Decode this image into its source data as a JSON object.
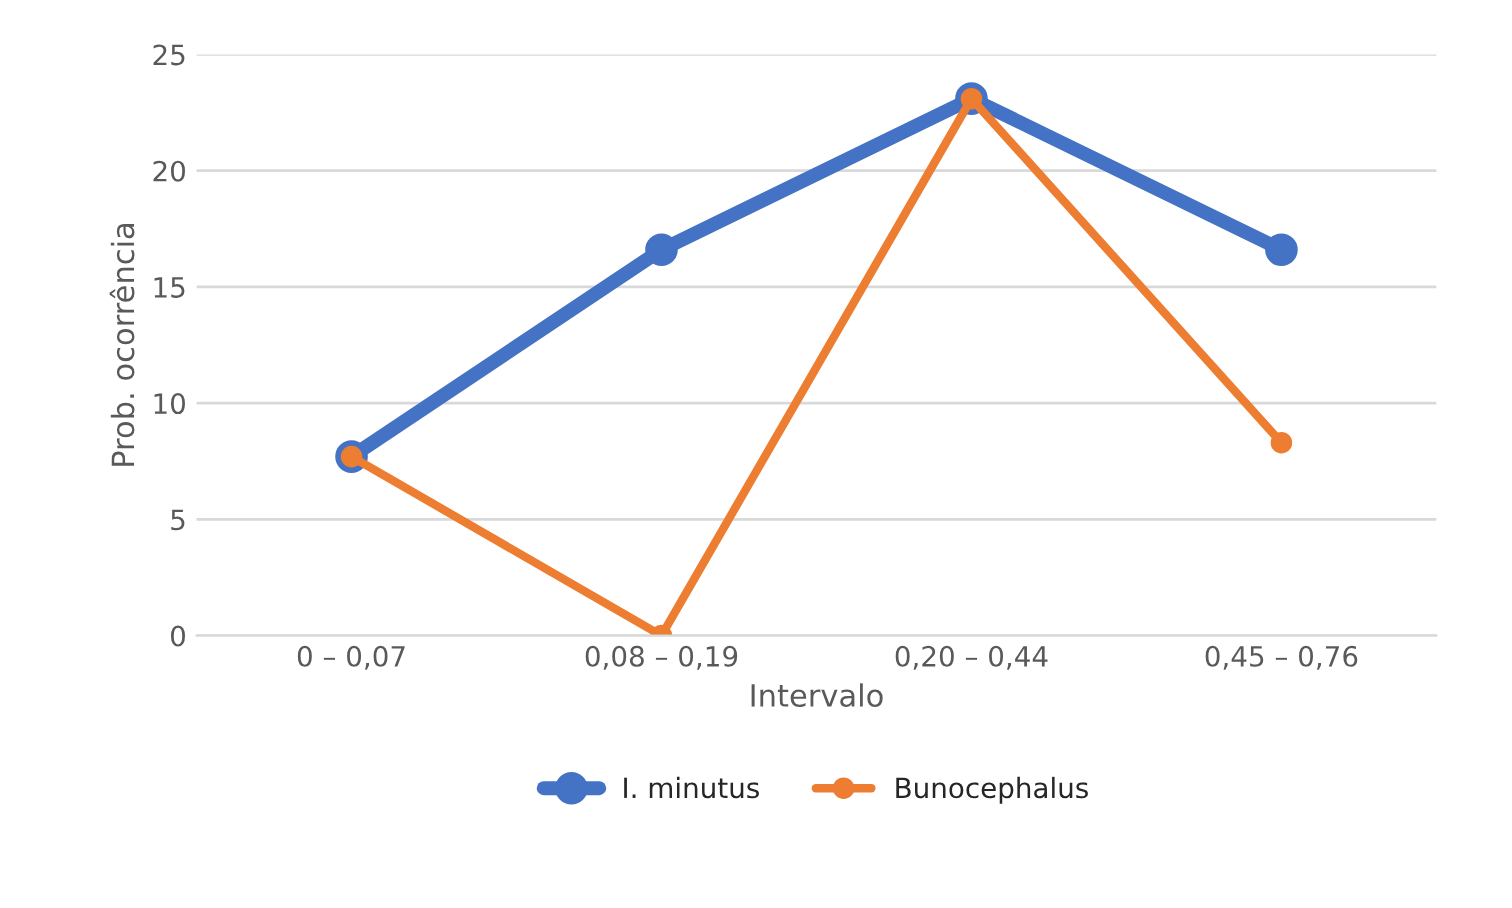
{
  "chart_data": {
    "type": "line",
    "xlabel": "Intervalo",
    "ylabel": "Prob. ocorrência",
    "categories": [
      "0 – 0,07",
      "0,08 – 0,19",
      "0,20 – 0,44",
      "0,45 – 0,76"
    ],
    "series": [
      {
        "name": "I. minutus",
        "color": "#4472c4",
        "values": [
          7.7,
          16.6,
          23.1,
          16.6
        ]
      },
      {
        "name": "Bunocephalus",
        "color": "#ed7d31",
        "values": [
          7.7,
          0,
          23.1,
          8.3
        ]
      }
    ],
    "ylim": [
      0,
      25
    ],
    "yticks": [
      0,
      5,
      10,
      15,
      20,
      25
    ],
    "grid": "y",
    "legend": "bottom",
    "marker": "circle",
    "line_style": "solid"
  }
}
